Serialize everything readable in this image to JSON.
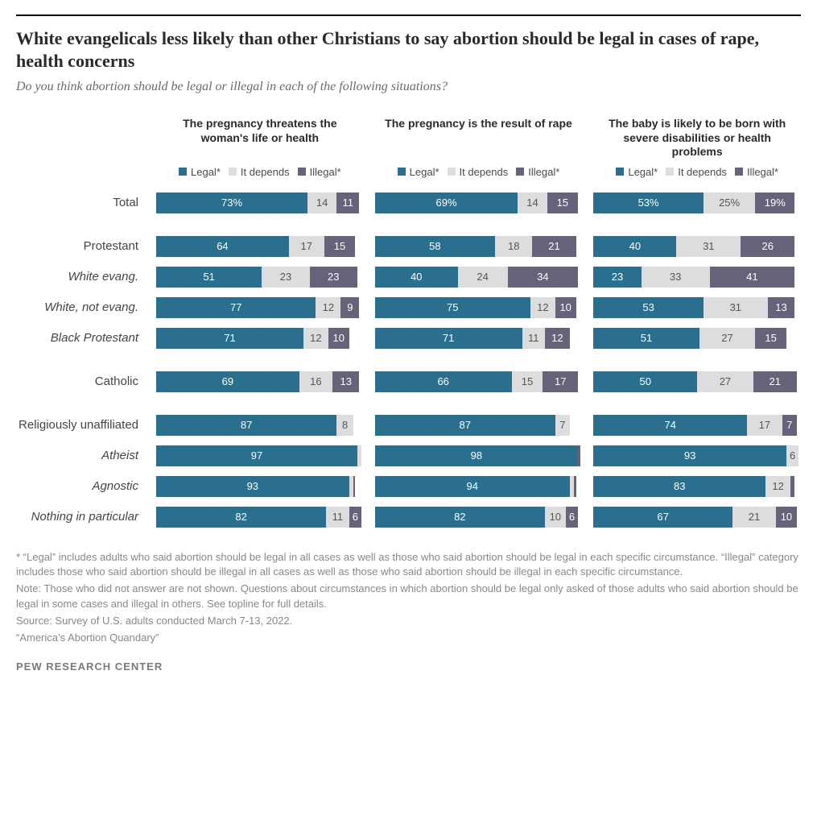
{
  "title": "White evangelicals less likely than other Christians to say abortion should be legal in cases of rape, health concerns",
  "subtitle": "Do you think abortion should be legal or illegal in each of the following situations?",
  "columns": [
    "The pregnancy threatens the woman's life or health",
    "The pregnancy is the result of rape",
    "The baby is likely to be born with severe disabilities or health problems"
  ],
  "legend": {
    "legal": "Legal*",
    "depends": "It depends",
    "illegal": "Illegal*"
  },
  "colors": {
    "legal": "#2b6f8e",
    "depends": "#dcddde",
    "illegal": "#656279",
    "bg": "#ffffff",
    "text": "#2a2a2a",
    "muted": "#888888"
  },
  "bar_scale_max": 100,
  "groups": [
    {
      "rows": [
        {
          "label": "Total",
          "italic": false,
          "cols": [
            {
              "legal": 73,
              "depends": 14,
              "illegal": 11,
              "legal_suffix": "%"
            },
            {
              "legal": 69,
              "depends": 14,
              "illegal": 15,
              "legal_suffix": "%"
            },
            {
              "legal": 53,
              "depends": 25,
              "illegal": 19,
              "legal_suffix": "%",
              "depends_suffix": "%",
              "illegal_suffix": "%"
            }
          ]
        }
      ]
    },
    {
      "rows": [
        {
          "label": "Protestant",
          "italic": false,
          "cols": [
            {
              "legal": 64,
              "depends": 17,
              "illegal": 15
            },
            {
              "legal": 58,
              "depends": 18,
              "illegal": 21
            },
            {
              "legal": 40,
              "depends": 31,
              "illegal": 26
            }
          ]
        },
        {
          "label": "White evang.",
          "italic": true,
          "cols": [
            {
              "legal": 51,
              "depends": 23,
              "illegal": 23
            },
            {
              "legal": 40,
              "depends": 24,
              "illegal": 34
            },
            {
              "legal": 23,
              "depends": 33,
              "illegal": 41
            }
          ]
        },
        {
          "label": "White, not evang.",
          "italic": true,
          "cols": [
            {
              "legal": 77,
              "depends": 12,
              "illegal": 9
            },
            {
              "legal": 75,
              "depends": 12,
              "illegal": 10
            },
            {
              "legal": 53,
              "depends": 31,
              "illegal": 13
            }
          ]
        },
        {
          "label": "Black Protestant",
          "italic": true,
          "cols": [
            {
              "legal": 71,
              "depends": 12,
              "illegal": 10
            },
            {
              "legal": 71,
              "depends": 11,
              "illegal": 12
            },
            {
              "legal": 51,
              "depends": 27,
              "illegal": 15
            }
          ]
        }
      ]
    },
    {
      "rows": [
        {
          "label": "Catholic",
          "italic": false,
          "cols": [
            {
              "legal": 69,
              "depends": 16,
              "illegal": 13
            },
            {
              "legal": 66,
              "depends": 15,
              "illegal": 17
            },
            {
              "legal": 50,
              "depends": 27,
              "illegal": 21
            }
          ]
        }
      ]
    },
    {
      "rows": [
        {
          "label": "Religiously unaffiliated",
          "italic": false,
          "cols": [
            {
              "legal": 87,
              "depends": 8,
              "illegal": null,
              "hide_depends_label": false
            },
            {
              "legal": 87,
              "depends": 7,
              "illegal": null
            },
            {
              "legal": 74,
              "depends": 17,
              "illegal": 7
            }
          ]
        },
        {
          "label": "Atheist",
          "italic": true,
          "cols": [
            {
              "legal": 97,
              "depends": null,
              "illegal": null,
              "tiny_depends": 2
            },
            {
              "legal": 98,
              "depends": null,
              "illegal": null,
              "tiny_illegal": 1
            },
            {
              "legal": 93,
              "depends": 6,
              "illegal": null
            }
          ]
        },
        {
          "label": "Agnostic",
          "italic": true,
          "cols": [
            {
              "legal": 93,
              "depends": null,
              "illegal": null,
              "tiny_depends": 2,
              "tiny_illegal": 1
            },
            {
              "legal": 94,
              "depends": null,
              "illegal": null,
              "tiny_depends": 2,
              "tiny_illegal": 1
            },
            {
              "legal": 83,
              "depends": 12,
              "illegal": null,
              "tiny_illegal": 2
            }
          ]
        },
        {
          "label": "Nothing in particular",
          "italic": true,
          "cols": [
            {
              "legal": 82,
              "depends": 11,
              "illegal": 6
            },
            {
              "legal": 82,
              "depends": 10,
              "illegal": 6
            },
            {
              "legal": 67,
              "depends": 21,
              "illegal": 10
            }
          ]
        }
      ]
    }
  ],
  "footnote1": "* “Legal” includes adults who said abortion should be legal in all cases as well as those who said abortion should be legal in each specific circumstance. “Illegal” category includes those who said abortion should be illegal in all cases as well as those who said abortion should be illegal in each specific circumstance.",
  "footnote2": "Note: Those who did not answer are not shown. Questions about circumstances in which abortion should be legal only asked of those adults who said abortion should be legal in some cases and illegal in others. See topline for full details.",
  "source": "Source: Survey of U.S. adults conducted March 7-13, 2022.",
  "report": "“America’s Abortion Quandary”",
  "brand": "PEW RESEARCH CENTER"
}
